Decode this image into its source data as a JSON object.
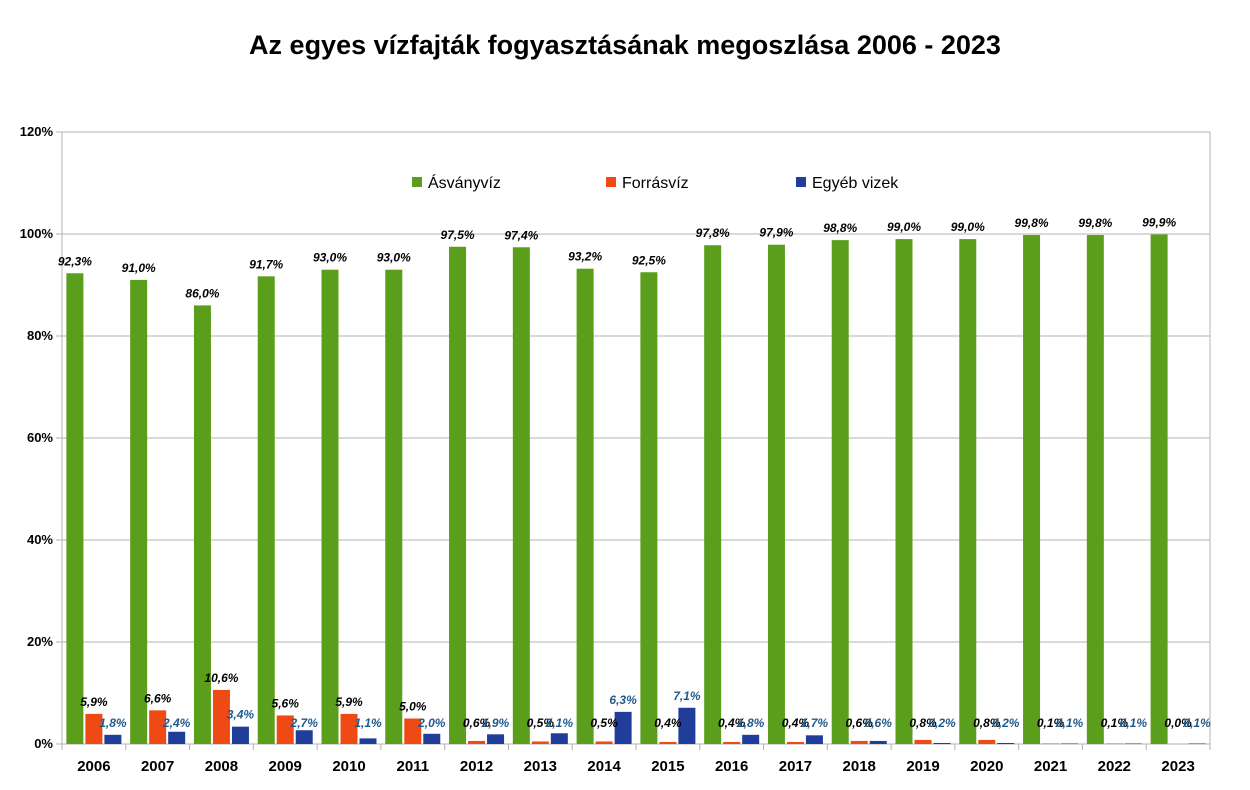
{
  "chart_data": {
    "type": "bar",
    "title": "Az egyes vízfajták fogyasztásának megoszlása 2006 - 2023",
    "xlabel": "",
    "ylabel": "",
    "ylim": [
      0,
      120
    ],
    "y_ticks": [
      "0%",
      "20%",
      "40%",
      "60%",
      "80%",
      "100%",
      "120%"
    ],
    "y_tick_values": [
      0,
      20,
      40,
      60,
      80,
      100,
      120
    ],
    "grid": true,
    "legend_position": "top-center",
    "categories": [
      "2006",
      "2007",
      "2008",
      "2009",
      "2010",
      "2011",
      "2012",
      "2013",
      "2014",
      "2015",
      "2016",
      "2017",
      "2018",
      "2019",
      "2020",
      "2021",
      "2022",
      "2023"
    ],
    "series": [
      {
        "name": "Ásványvíz",
        "color": "#5a9e1c",
        "label_color": "#000000",
        "values": [
          92.3,
          91.0,
          86.0,
          91.7,
          93.0,
          93.0,
          97.5,
          97.4,
          93.2,
          92.5,
          97.8,
          97.9,
          98.8,
          99.0,
          99.0,
          99.8,
          99.8,
          99.9
        ],
        "labels": [
          "92,3%",
          "91,0%",
          "86,0%",
          "91,7%",
          "93,0%",
          "93,0%",
          "97,5%",
          "97,4%",
          "93,2%",
          "92,5%",
          "97,8%",
          "97,9%",
          "98,8%",
          "99,0%",
          "99,0%",
          "99,8%",
          "99,8%",
          "99,9%"
        ]
      },
      {
        "name": "Forrásvíz",
        "color": "#f04a14",
        "label_color": "#000000",
        "values": [
          5.9,
          6.6,
          10.6,
          5.6,
          5.9,
          5.0,
          0.6,
          0.5,
          0.5,
          0.4,
          0.4,
          0.4,
          0.6,
          0.8,
          0.8,
          0.1,
          0.1,
          0.0
        ],
        "labels": [
          "5,9%",
          "6,6%",
          "10,6%",
          "5,6%",
          "5,9%",
          "5,0%",
          "0,6%",
          "0,5%",
          "0,5%",
          "0,4%",
          "0,4%",
          "0,4%",
          "0,6%",
          "0,8%",
          "0,8%",
          "0,1%",
          "0,1%",
          "0,0%"
        ]
      },
      {
        "name": "Egyéb vizek",
        "color": "#1f3d99",
        "label_color": "#1f5a8c",
        "values": [
          1.8,
          2.4,
          3.4,
          2.7,
          1.1,
          2.0,
          1.9,
          2.1,
          6.3,
          7.1,
          1.8,
          1.7,
          0.6,
          0.2,
          0.2,
          0.1,
          0.1,
          0.1
        ],
        "labels": [
          "1,8%",
          "2,4%",
          "3,4%",
          "2,7%",
          "1,1%",
          "2,0%",
          "1,9%",
          "2,1%",
          "6,3%",
          "7,1%",
          "1,8%",
          "1,7%",
          "0,6%",
          "0,2%",
          "0,2%",
          "0,1%",
          "0,1%",
          "0,1%"
        ]
      }
    ]
  }
}
